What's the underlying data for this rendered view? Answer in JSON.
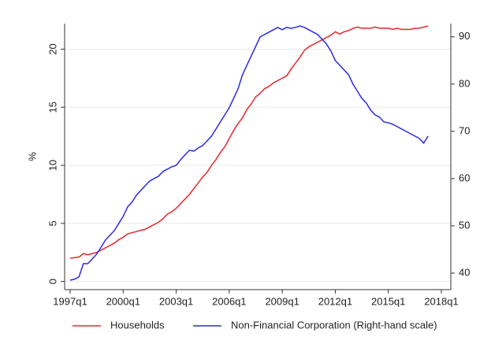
{
  "chart_data": {
    "type": "line",
    "y_label": "%",
    "categories": [
      "1997q1",
      null,
      null,
      null,
      null,
      null,
      null,
      null,
      null,
      null,
      null,
      null,
      "2000q1",
      null,
      null,
      null,
      null,
      null,
      null,
      null,
      null,
      null,
      null,
      null,
      "2003q1",
      null,
      null,
      null,
      null,
      null,
      null,
      null,
      null,
      null,
      null,
      null,
      "2006q1",
      null,
      null,
      null,
      null,
      null,
      null,
      null,
      null,
      null,
      null,
      null,
      "2009q1",
      null,
      null,
      null,
      null,
      null,
      null,
      null,
      null,
      null,
      null,
      null,
      "2012q1",
      null,
      null,
      null,
      null,
      null,
      null,
      null,
      null,
      null,
      null,
      null,
      "2015q1",
      null,
      null,
      null,
      null,
      null,
      null,
      null,
      null,
      null,
      null,
      null,
      "2018q1"
    ],
    "series": [
      {
        "name": "Households",
        "color": "#e8262a",
        "axis": "y",
        "values": [
          2.0,
          2.05,
          2.1,
          2.4,
          2.3,
          2.4,
          2.5,
          2.7,
          2.9,
          3.1,
          3.3,
          3.6,
          3.8,
          4.1,
          4.2,
          4.3,
          4.4,
          4.5,
          4.7,
          4.9,
          5.1,
          5.4,
          5.8,
          6.0,
          6.3,
          6.7,
          7.1,
          7.5,
          8.0,
          8.5,
          9.0,
          9.4,
          10.0,
          10.5,
          11.1,
          11.6,
          12.3,
          13.0,
          13.6,
          14.1,
          14.8,
          15.3,
          15.9,
          16.2,
          16.6,
          16.8,
          17.1,
          17.3,
          17.5,
          17.7,
          18.3,
          18.8,
          19.3,
          19.9,
          20.2,
          20.4,
          20.6,
          20.8,
          21.0,
          21.2,
          21.5,
          21.3,
          21.5,
          21.6,
          21.8,
          21.9,
          21.8,
          21.8,
          21.8,
          21.9,
          21.8,
          21.8,
          21.8,
          21.7,
          21.8,
          21.7,
          21.7,
          21.7,
          21.8,
          21.8,
          21.9,
          22.0,
          null,
          null,
          null
        ]
      },
      {
        "name": "Non-Financial Corporation (Right-hand scale)",
        "color": "#2a2ae8",
        "axis": "y2",
        "values": [
          38.5,
          38.7,
          39.2,
          42,
          42,
          43,
          44,
          45.5,
          47,
          48,
          49,
          50.5,
          52,
          54,
          55,
          56.5,
          57.5,
          58.5,
          59.5,
          60,
          60.5,
          61.5,
          62,
          62.5,
          62.8,
          64,
          65,
          66,
          65.8,
          66.5,
          67,
          68,
          69,
          70.5,
          72,
          73.5,
          75,
          77,
          79,
          82,
          84,
          86,
          88,
          90,
          90.5,
          91,
          91.5,
          92,
          91.5,
          92,
          91.8,
          92,
          92.3,
          92,
          91.5,
          91,
          90.5,
          89.5,
          88.5,
          87,
          85,
          84,
          83,
          82,
          80,
          78.5,
          77,
          76,
          74.5,
          73.5,
          73,
          72,
          71.8,
          71.5,
          71,
          70.5,
          70,
          69.5,
          69,
          68.5,
          67.5,
          69,
          null,
          null,
          null
        ]
      }
    ],
    "ylim": [
      -0.7,
      22.2
    ],
    "yticks": [
      0,
      5,
      10,
      15,
      20
    ],
    "y2lim": [
      36.5,
      92.8
    ],
    "y2ticks": [
      40,
      50,
      60,
      70,
      80,
      90
    ],
    "grid": true,
    "legend": "bottom"
  }
}
